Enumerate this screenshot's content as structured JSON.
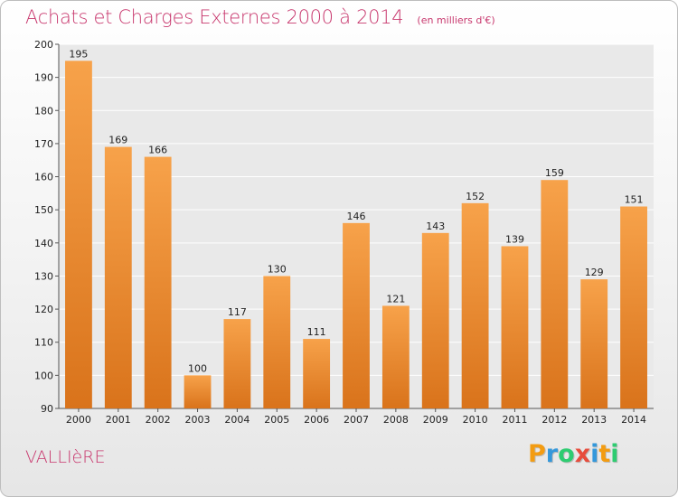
{
  "header": {
    "title": "Achats et Charges Externes 2000 à 2014",
    "unit": "(en milliers d'€)"
  },
  "footer": {
    "commune": "VALLIèRE",
    "logo_letters": [
      "P",
      "r",
      "o",
      "x",
      "i",
      "t",
      "i"
    ],
    "logo_colors": [
      "#f39c12",
      "#3498db",
      "#2ecc71",
      "#e74c3c",
      "#3498db",
      "#f39c12",
      "#2ecc71"
    ]
  },
  "colors": {
    "title": "#c8386e",
    "bar_light": "#f7a24a",
    "bar_dark": "#d9731b"
  },
  "chart_data": {
    "type": "bar",
    "title": "Achats et Charges Externes 2000 à 2014",
    "categories": [
      "2000",
      "2001",
      "2002",
      "2003",
      "2004",
      "2005",
      "2006",
      "2007",
      "2008",
      "2009",
      "2010",
      "2011",
      "2012",
      "2013",
      "2014"
    ],
    "values": [
      195,
      169,
      166,
      100,
      117,
      130,
      111,
      146,
      121,
      143,
      152,
      139,
      159,
      129,
      151
    ],
    "ylim": [
      90,
      200
    ],
    "yticks": [
      90,
      100,
      110,
      120,
      130,
      140,
      150,
      160,
      170,
      180,
      190,
      200
    ],
    "grid": true,
    "xlabel": "",
    "ylabel": ""
  }
}
